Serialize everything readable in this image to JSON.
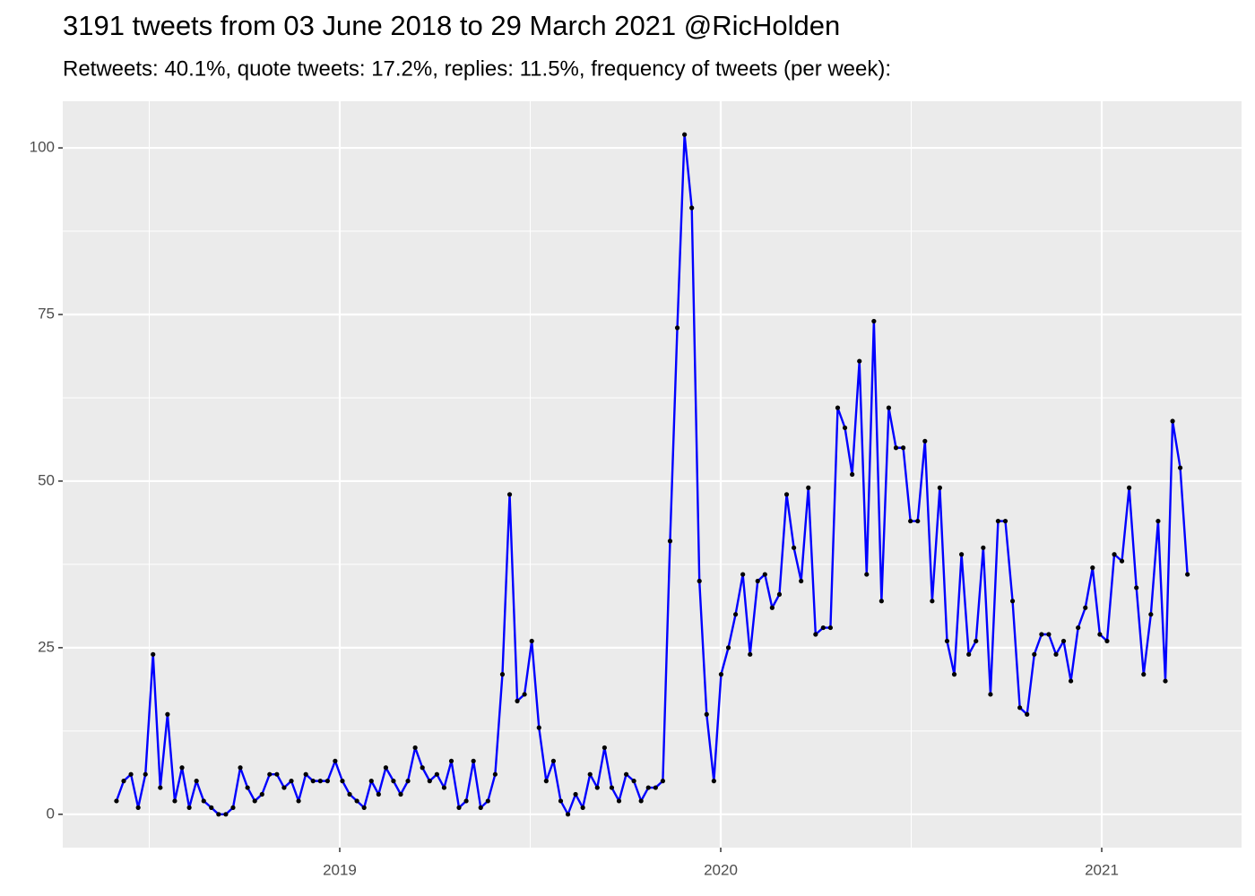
{
  "chart_data": {
    "type": "line",
    "title": "3191 tweets from 03 June 2018 to 29 March 2021 @RicHolden",
    "subtitle": "Retweets: 40.1%, quote tweets: 17.2%, replies: 11.5%, frequency of tweets (per week):",
    "x": [
      2018.414,
      2018.433,
      2018.452,
      2018.471,
      2018.49,
      2018.51,
      2018.529,
      2018.548,
      2018.567,
      2018.586,
      2018.605,
      2018.624,
      2018.643,
      2018.663,
      2018.682,
      2018.701,
      2018.72,
      2018.739,
      2018.758,
      2018.777,
      2018.796,
      2018.816,
      2018.835,
      2018.854,
      2018.873,
      2018.892,
      2018.911,
      2018.93,
      2018.949,
      2018.968,
      2018.988,
      2019.007,
      2019.026,
      2019.045,
      2019.064,
      2019.083,
      2019.102,
      2019.121,
      2019.141,
      2019.16,
      2019.179,
      2019.198,
      2019.217,
      2019.236,
      2019.255,
      2019.274,
      2019.293,
      2019.313,
      2019.332,
      2019.351,
      2019.37,
      2019.389,
      2019.408,
      2019.427,
      2019.446,
      2019.466,
      2019.485,
      2019.504,
      2019.523,
      2019.542,
      2019.561,
      2019.58,
      2019.599,
      2019.619,
      2019.638,
      2019.657,
      2019.676,
      2019.695,
      2019.714,
      2019.733,
      2019.752,
      2019.772,
      2019.791,
      2019.81,
      2019.829,
      2019.848,
      2019.867,
      2019.886,
      2019.905,
      2019.924,
      2019.944,
      2019.963,
      2019.982,
      2020.001,
      2020.02,
      2020.039,
      2020.058,
      2020.077,
      2020.097,
      2020.116,
      2020.135,
      2020.154,
      2020.173,
      2020.192,
      2020.211,
      2020.23,
      2020.249,
      2020.269,
      2020.288,
      2020.307,
      2020.326,
      2020.345,
      2020.364,
      2020.383,
      2020.402,
      2020.422,
      2020.441,
      2020.46,
      2020.479,
      2020.498,
      2020.517,
      2020.536,
      2020.555,
      2020.575,
      2020.594,
      2020.613,
      2020.632,
      2020.651,
      2020.67,
      2020.689,
      2020.708,
      2020.728,
      2020.747,
      2020.766,
      2020.785,
      2020.804,
      2020.823,
      2020.842,
      2020.861,
      2020.88,
      2020.9,
      2020.919,
      2020.938,
      2020.957,
      2020.976,
      2020.995,
      2021.014,
      2021.033,
      2021.053,
      2021.072,
      2021.091,
      2021.11,
      2021.129,
      2021.148,
      2021.167,
      2021.186,
      2021.206,
      2021.225
    ],
    "series": [
      {
        "color": "#0000ff",
        "marker_color": "#000000",
        "values": [
          2,
          5,
          6,
          1,
          6,
          24,
          4,
          15,
          2,
          7,
          1,
          5,
          2,
          1,
          0,
          0,
          1,
          7,
          4,
          2,
          3,
          6,
          6,
          4,
          5,
          2,
          6,
          5,
          5,
          5,
          8,
          5,
          3,
          2,
          1,
          5,
          3,
          7,
          5,
          3,
          5,
          10,
          7,
          5,
          6,
          4,
          8,
          1,
          2,
          8,
          1,
          2,
          6,
          21,
          48,
          17,
          18,
          26,
          13,
          5,
          8,
          2,
          0,
          3,
          1,
          6,
          4,
          10,
          4,
          2,
          6,
          5,
          2,
          4,
          4,
          5,
          41,
          73,
          102,
          91,
          35,
          15,
          5,
          21,
          25,
          30,
          36,
          24,
          35,
          36,
          31,
          33,
          48,
          40,
          35,
          49,
          27,
          28,
          28,
          61,
          58,
          51,
          68,
          36,
          74,
          32,
          61,
          55,
          55,
          44,
          44,
          56,
          32,
          49,
          26,
          21,
          39,
          24,
          26,
          40,
          18,
          44,
          44,
          32,
          16,
          15,
          24,
          27,
          27,
          24,
          26,
          20,
          28,
          31,
          37,
          27,
          26,
          39,
          38,
          49,
          34,
          21,
          30,
          44,
          20,
          59,
          52,
          36
        ]
      }
    ],
    "xlim": [
      2018.273,
      2021.367
    ],
    "xticks": [
      2019,
      2020,
      2021
    ],
    "ylim": [
      -5,
      107
    ],
    "yticks": [
      0,
      25,
      50,
      75,
      100
    ],
    "grid": true
  }
}
